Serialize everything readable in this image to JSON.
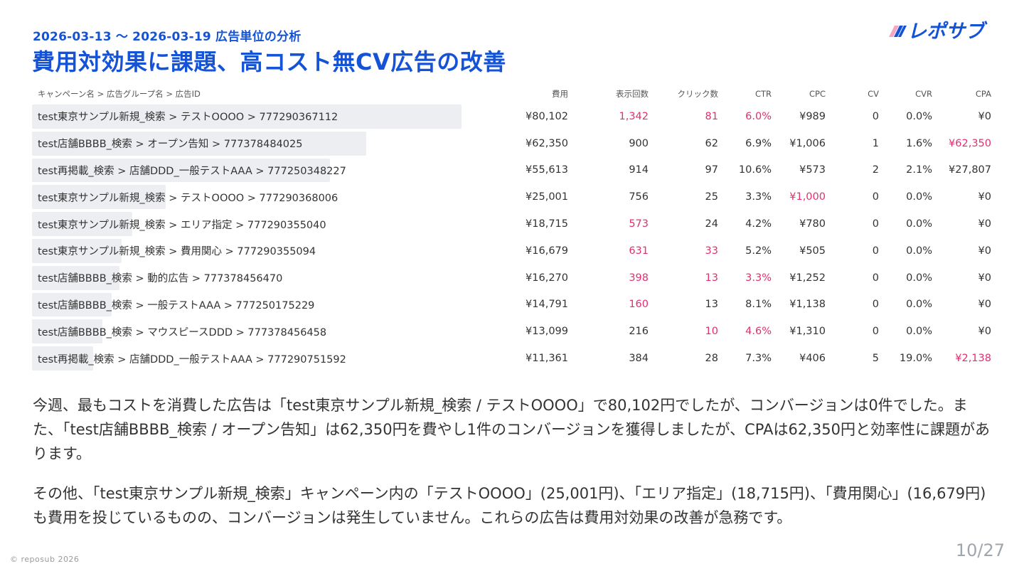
{
  "header": {
    "subtitle": "2026-03-13 ～ 2026-03-19 広告単位の分析",
    "title": "費用対効果に課題、高コスト無CV広告の改善",
    "logo_text": "レポサブ",
    "logo_icon": "stripes-icon"
  },
  "table": {
    "columns": [
      "キャンペーン名 > 広告グループ名 > 広告ID",
      "費用",
      "表示回数",
      "クリック数",
      "CTR",
      "CPC",
      "CV",
      "CVR",
      "CPA"
    ],
    "highlight_color": "#e0306f",
    "bar_color": "#eceef1",
    "rows": [
      {
        "name": "test東京サンプル新規_検索 > テストOOOO > 777290367112",
        "cost": "¥80,102",
        "cost_share": 1.0,
        "impressions": "1,342",
        "clicks": "81",
        "ctr": "6.0%",
        "cpc": "¥989",
        "cv": "0",
        "cvr": "0.0%",
        "cpa": "¥0",
        "hl": [
          "impressions",
          "clicks",
          "ctr"
        ]
      },
      {
        "name": "test店舗BBBB_検索 > オープン告知 > 777378484025",
        "cost": "¥62,350",
        "cost_share": 0.778,
        "impressions": "900",
        "clicks": "62",
        "ctr": "6.9%",
        "cpc": "¥1,006",
        "cv": "1",
        "cvr": "1.6%",
        "cpa": "¥62,350",
        "hl": [
          "cpa"
        ]
      },
      {
        "name": "test再掲載_検索 > 店舗DDD_一般テストAAA > 777250348227",
        "cost": "¥55,613",
        "cost_share": 0.694,
        "impressions": "914",
        "clicks": "97",
        "ctr": "10.6%",
        "cpc": "¥573",
        "cv": "2",
        "cvr": "2.1%",
        "cpa": "¥27,807",
        "hl": []
      },
      {
        "name": "test東京サンプル新規_検索 > テストOOOO > 777290368006",
        "cost": "¥25,001",
        "cost_share": 0.312,
        "impressions": "756",
        "clicks": "25",
        "ctr": "3.3%",
        "cpc": "¥1,000",
        "cv": "0",
        "cvr": "0.0%",
        "cpa": "¥0",
        "hl": [
          "cpc"
        ]
      },
      {
        "name": "test東京サンプル新規_検索 > エリア指定 > 777290355040",
        "cost": "¥18,715",
        "cost_share": 0.234,
        "impressions": "573",
        "clicks": "24",
        "ctr": "4.2%",
        "cpc": "¥780",
        "cv": "0",
        "cvr": "0.0%",
        "cpa": "¥0",
        "hl": [
          "impressions"
        ]
      },
      {
        "name": "test東京サンプル新規_検索 > 費用関心 > 777290355094",
        "cost": "¥16,679",
        "cost_share": 0.208,
        "impressions": "631",
        "clicks": "33",
        "ctr": "5.2%",
        "cpc": "¥505",
        "cv": "0",
        "cvr": "0.0%",
        "cpa": "¥0",
        "hl": [
          "impressions",
          "clicks"
        ]
      },
      {
        "name": "test店舗BBBB_検索 > 動的広告 > 777378456470",
        "cost": "¥16,270",
        "cost_share": 0.203,
        "impressions": "398",
        "clicks": "13",
        "ctr": "3.3%",
        "cpc": "¥1,252",
        "cv": "0",
        "cvr": "0.0%",
        "cpa": "¥0",
        "hl": [
          "impressions",
          "clicks",
          "ctr"
        ]
      },
      {
        "name": "test店舗BBBB_検索 > 一般テストAAA > 777250175229",
        "cost": "¥14,791",
        "cost_share": 0.185,
        "impressions": "160",
        "clicks": "13",
        "ctr": "8.1%",
        "cpc": "¥1,138",
        "cv": "0",
        "cvr": "0.0%",
        "cpa": "¥0",
        "hl": [
          "impressions"
        ]
      },
      {
        "name": "test店舗BBBB_検索 > マウスピースDDD > 777378456458",
        "cost": "¥13,099",
        "cost_share": 0.164,
        "impressions": "216",
        "clicks": "10",
        "ctr": "4.6%",
        "cpc": "¥1,310",
        "cv": "0",
        "cvr": "0.0%",
        "cpa": "¥0",
        "hl": [
          "clicks",
          "ctr"
        ]
      },
      {
        "name": "test再掲載_検索 > 店舗DDD_一般テストAAA > 777290751592",
        "cost": "¥11,361",
        "cost_share": 0.142,
        "impressions": "384",
        "clicks": "28",
        "ctr": "7.3%",
        "cpc": "¥406",
        "cv": "5",
        "cvr": "19.0%",
        "cpa": "¥2,138",
        "hl": [
          "cpa"
        ]
      }
    ]
  },
  "body": {
    "paragraph1": "今週、最もコストを消費した広告は「test東京サンプル新規_検索 / テストOOOO」で80,102円でしたが、コンバージョンは0件でした。また、「test店舗BBBB_検索 / オープン告知」は62,350円を費やし1件のコンバージョンを獲得しましたが、CPAは62,350円と効率性に課題があります。",
    "paragraph2": "その他、「test東京サンプル新規_検索」キャンペーン内の「テストOOOO」(25,001円)、「エリア指定」(18,715円)、「費用関心」(16,679円)も費用を投じているものの、コンバージョンは発生していません。これらの広告は費用対効果の改善が急務です。"
  },
  "footer": {
    "copyright": "© reposub 2026",
    "page": "10/27"
  }
}
